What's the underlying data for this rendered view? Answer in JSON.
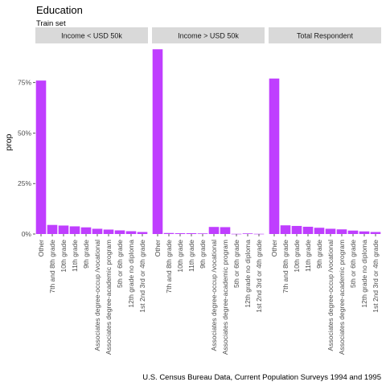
{
  "chart_data": {
    "type": "bar",
    "title": "Education",
    "subtitle": "Train set",
    "ylabel": "prop",
    "xlabel": "",
    "caption": "U.S. Census Bureau Data, Current Population Surveys 1994 and 1995",
    "ylim": [
      0,
      0.92
    ],
    "yticks": [
      0,
      0.25,
      0.5,
      0.75
    ],
    "ytick_labels": [
      "0%",
      "25%",
      "50%",
      "75%"
    ],
    "grid": false,
    "bar_color": "#BF3EFF",
    "facets": [
      {
        "label": "Income < USD 50k",
        "categories": [
          "Other",
          "7th and 8th grade",
          "10th grade",
          "11th grade",
          "9th grade",
          "Associates degree-occup /vocational",
          "Associates degree-academic program",
          "5th or 6th grade",
          "12th grade no diploma",
          "1st 2nd 3rd or 4th grade"
        ],
        "values": [
          0.76,
          0.045,
          0.042,
          0.038,
          0.033,
          0.026,
          0.022,
          0.018,
          0.014,
          0.01
        ]
      },
      {
        "label": "Income > USD 50k",
        "categories": [
          "Other",
          "7th and 8th grade",
          "10th grade",
          "11th grade",
          "9th grade",
          "Associates degree-occup /vocational",
          "Associates degree-academic program",
          "5th or 6th grade",
          "12th grade no diploma",
          "1st 2nd 3rd or 4th grade"
        ],
        "values": [
          0.915,
          0.005,
          0.004,
          0.004,
          0.003,
          0.035,
          0.034,
          0.001,
          0.003,
          0.001
        ]
      },
      {
        "label": "Total Respondent",
        "categories": [
          "Other",
          "7th and 8th grade",
          "10th grade",
          "11th grade",
          "9th grade",
          "Associates degree-occup /vocational",
          "Associates degree-academic program",
          "5th or 6th grade",
          "12th grade no diploma",
          "1st 2nd 3rd or 4th grade"
        ],
        "values": [
          0.77,
          0.043,
          0.04,
          0.036,
          0.031,
          0.026,
          0.023,
          0.017,
          0.013,
          0.01
        ]
      }
    ]
  }
}
